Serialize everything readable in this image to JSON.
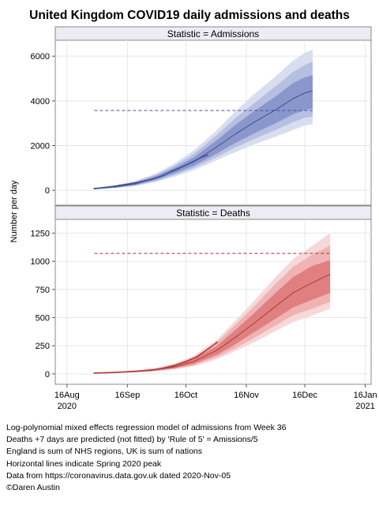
{
  "chart_data": {
    "title": "United Kingdom COVID19 daily admissions and deaths",
    "ylabel": "Number per day",
    "x_axis": {
      "type": "date",
      "range": [
        "2020-08-10",
        "2021-01-19"
      ],
      "ticks": [
        {
          "date": "2020-08-16",
          "line1": "16Aug",
          "line2": "2020"
        },
        {
          "date": "2020-09-16",
          "line1": "16Sep",
          "line2": ""
        },
        {
          "date": "2020-10-16",
          "line1": "16Oct",
          "line2": ""
        },
        {
          "date": "2020-11-16",
          "line1": "16Nov",
          "line2": ""
        },
        {
          "date": "2020-12-16",
          "line1": "16Dec",
          "line2": ""
        },
        {
          "date": "2021-01-16",
          "line1": "16Jan",
          "line2": "2021"
        }
      ],
      "grid": true
    },
    "panels": [
      {
        "type": "line",
        "header": "Statistic = Admissions",
        "color": "#3f4f94",
        "band_colors": [
          "#d9deef",
          "#b6bfe0",
          "#8a97cd"
        ],
        "ylim": [
          -450,
          6500
        ],
        "yticks": [
          0,
          2000,
          4000,
          6000
        ],
        "ytick_labels": [
          "0",
          "2000",
          "4000",
          "6000"
        ],
        "peak_line": 3570,
        "observed": {
          "x": [
            "2020-08-30",
            "2020-09-05",
            "2020-09-12",
            "2020-09-20",
            "2020-09-28",
            "2020-10-04",
            "2020-10-09",
            "2020-10-14",
            "2020-10-19",
            "2020-10-24",
            "2020-10-27"
          ],
          "y": [
            80,
            130,
            220,
            330,
            480,
            650,
            870,
            1050,
            1250,
            1480,
            1570
          ]
        },
        "model": {
          "x": [
            "2020-08-30",
            "2020-09-10",
            "2020-09-20",
            "2020-10-01",
            "2020-10-10",
            "2020-10-20",
            "2020-11-01",
            "2020-11-10",
            "2020-11-20",
            "2020-12-01",
            "2020-12-10",
            "2020-12-16",
            "2020-12-20"
          ],
          "y": [
            80,
            160,
            290,
            560,
            880,
            1280,
            1950,
            2500,
            3050,
            3600,
            4100,
            4350,
            4450
          ],
          "band_inner": [
            [
              60,
              100
            ],
            [
              130,
              200
            ],
            [
              240,
              350
            ],
            [
              480,
              650
            ],
            [
              760,
              1000
            ],
            [
              1100,
              1470
            ],
            [
              1650,
              2250
            ],
            [
              2100,
              2900
            ],
            [
              2550,
              3550
            ],
            [
              3000,
              4200
            ],
            [
              3400,
              4800
            ],
            [
              3600,
              5050
            ],
            [
              3650,
              5150
            ]
          ],
          "band_mid": [
            [
              50,
              110
            ],
            [
              115,
              215
            ],
            [
              215,
              385
            ],
            [
              430,
              710
            ],
            [
              680,
              1100
            ],
            [
              1000,
              1620
            ],
            [
              1500,
              2480
            ],
            [
              1900,
              3200
            ],
            [
              2300,
              3900
            ],
            [
              2700,
              4650
            ],
            [
              3050,
              5300
            ],
            [
              3250,
              5600
            ],
            [
              3300,
              5750
            ]
          ],
          "band_outer": [
            [
              40,
              120
            ],
            [
              100,
              230
            ],
            [
              190,
              420
            ],
            [
              390,
              770
            ],
            [
              610,
              1190
            ],
            [
              900,
              1780
            ],
            [
              1350,
              2700
            ],
            [
              1700,
              3500
            ],
            [
              2050,
              4300
            ],
            [
              2400,
              5100
            ],
            [
              2700,
              5800
            ],
            [
              2900,
              6150
            ],
            [
              2950,
              6300
            ]
          ]
        }
      },
      {
        "type": "line",
        "header": "Statistic = Deaths",
        "color": "#b03a3a",
        "band_colors": [
          "#f6d8d8",
          "#efb3b3",
          "#e07f7f"
        ],
        "ylim": [
          -50,
          1330
        ],
        "yticks": [
          0,
          250,
          500,
          750,
          1000,
          1250
        ],
        "ytick_labels": [
          "0",
          "250",
          "500",
          "750",
          "1000",
          "1250"
        ],
        "peak_line": 1070,
        "observed": {
          "x": [
            "2020-08-30",
            "2020-09-05",
            "2020-09-12",
            "2020-09-20",
            "2020-09-28",
            "2020-10-04",
            "2020-10-10",
            "2020-10-16",
            "2020-10-22",
            "2020-10-28",
            "2020-11-01"
          ],
          "y": [
            8,
            10,
            15,
            22,
            32,
            48,
            75,
            110,
            155,
            230,
            280
          ]
        },
        "model": {
          "x": [
            "2020-08-30",
            "2020-09-10",
            "2020-09-20",
            "2020-10-01",
            "2020-10-10",
            "2020-10-20",
            "2020-11-01",
            "2020-11-10",
            "2020-11-20",
            "2020-12-01",
            "2020-12-10",
            "2020-12-20",
            "2020-12-29"
          ],
          "y": [
            8,
            14,
            22,
            38,
            62,
            110,
            210,
            320,
            450,
            600,
            720,
            810,
            885
          ],
          "band_inner": [
            [
              6,
              10
            ],
            [
              11,
              17
            ],
            [
              18,
              27
            ],
            [
              31,
              46
            ],
            [
              50,
              76
            ],
            [
              88,
              133
            ],
            [
              170,
              250
            ],
            [
              260,
              385
            ],
            [
              370,
              540
            ],
            [
              490,
              720
            ],
            [
              590,
              860
            ],
            [
              660,
              960
            ],
            [
              720,
              1010
            ]
          ],
          "band_mid": [
            [
              5,
              11
            ],
            [
              10,
              18
            ],
            [
              16,
              30
            ],
            [
              27,
              51
            ],
            [
              44,
              84
            ],
            [
              77,
              147
            ],
            [
              150,
              280
            ],
            [
              225,
              430
            ],
            [
              320,
              600
            ],
            [
              430,
              800
            ],
            [
              520,
              950
            ],
            [
              580,
              1060
            ],
            [
              640,
              1140
            ]
          ],
          "band_outer": [
            [
              4,
              12
            ],
            [
              9,
              20
            ],
            [
              14,
              32
            ],
            [
              24,
              55
            ],
            [
              39,
              91
            ],
            [
              68,
              160
            ],
            [
              130,
              305
            ],
            [
              200,
              465
            ],
            [
              280,
              650
            ],
            [
              380,
              860
            ],
            [
              460,
              1020
            ],
            [
              520,
              1140
            ],
            [
              580,
              1250
            ]
          ]
        }
      }
    ]
  },
  "notes": [
    "Log-polynomial mixed effects regression model of admissions from Week 36",
    "Deaths +7 days are predicted (not fitted) by 'Rule of 5' = Amissions/5",
    "England is sum of NHS regions, UK is sum of nations",
    "Horizontal lines indicate Spring 2020 peak",
    "Data from https://coronavirus.data.gov.uk dated 2020-Nov-05",
    "©Daren Austin"
  ]
}
